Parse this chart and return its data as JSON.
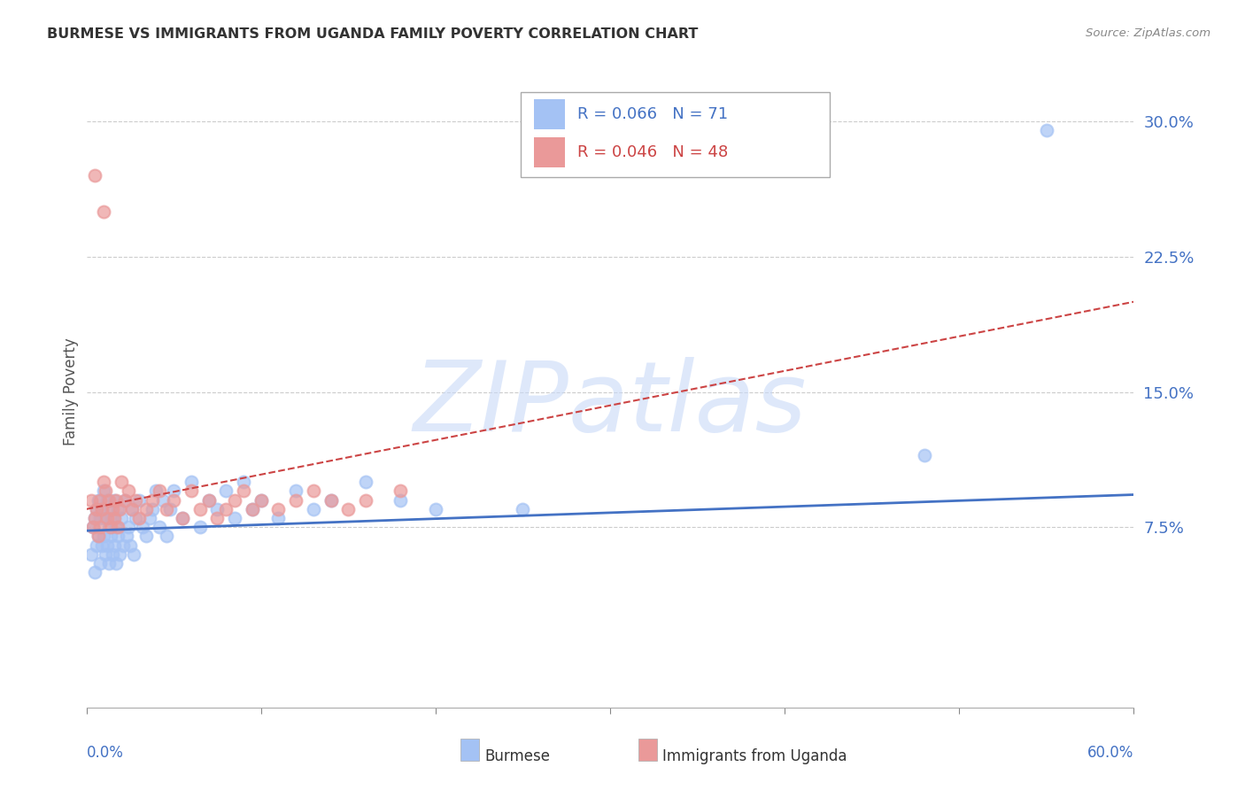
{
  "title": "BURMESE VS IMMIGRANTS FROM UGANDA FAMILY POVERTY CORRELATION CHART",
  "source": "Source: ZipAtlas.com",
  "ylabel": "Family Poverty",
  "ytick_labels": [
    "7.5%",
    "15.0%",
    "22.5%",
    "30.0%"
  ],
  "ytick_values": [
    0.075,
    0.15,
    0.225,
    0.3
  ],
  "xlim": [
    0.0,
    0.6
  ],
  "ylim": [
    -0.025,
    0.325
  ],
  "burmese_color": "#a4c2f4",
  "uganda_color": "#ea9999",
  "trendline_burmese_color": "#4472c4",
  "trendline_uganda_color": "#cc4444",
  "watermark": "ZIPatlas",
  "watermark_color": "#c9daf8",
  "burmese_R": 0.066,
  "burmese_N": 71,
  "uganda_R": 0.046,
  "uganda_N": 48,
  "burmese_trend_x0": 0.0,
  "burmese_trend_y0": 0.073,
  "burmese_trend_x1": 0.6,
  "burmese_trend_y1": 0.093,
  "uganda_trend_x0": 0.0,
  "uganda_trend_y0": 0.085,
  "uganda_trend_x1": 0.6,
  "uganda_trend_y1": 0.2,
  "burmese_scatter_x": [
    0.003,
    0.004,
    0.005,
    0.005,
    0.006,
    0.006,
    0.007,
    0.007,
    0.008,
    0.008,
    0.009,
    0.009,
    0.01,
    0.01,
    0.011,
    0.011,
    0.012,
    0.012,
    0.013,
    0.013,
    0.014,
    0.014,
    0.015,
    0.015,
    0.016,
    0.016,
    0.017,
    0.017,
    0.018,
    0.018,
    0.019,
    0.02,
    0.021,
    0.022,
    0.023,
    0.024,
    0.025,
    0.026,
    0.027,
    0.028,
    0.03,
    0.032,
    0.034,
    0.036,
    0.038,
    0.04,
    0.042,
    0.044,
    0.046,
    0.048,
    0.05,
    0.055,
    0.06,
    0.065,
    0.07,
    0.075,
    0.08,
    0.085,
    0.09,
    0.095,
    0.1,
    0.11,
    0.12,
    0.13,
    0.14,
    0.16,
    0.18,
    0.2,
    0.25,
    0.48,
    0.55
  ],
  "burmese_scatter_y": [
    0.06,
    0.075,
    0.05,
    0.08,
    0.065,
    0.085,
    0.07,
    0.09,
    0.055,
    0.08,
    0.065,
    0.085,
    0.07,
    0.095,
    0.06,
    0.08,
    0.065,
    0.09,
    0.055,
    0.075,
    0.07,
    0.085,
    0.06,
    0.08,
    0.065,
    0.09,
    0.055,
    0.075,
    0.07,
    0.085,
    0.06,
    0.08,
    0.065,
    0.09,
    0.07,
    0.075,
    0.065,
    0.085,
    0.06,
    0.08,
    0.09,
    0.075,
    0.07,
    0.08,
    0.085,
    0.095,
    0.075,
    0.09,
    0.07,
    0.085,
    0.095,
    0.08,
    0.1,
    0.075,
    0.09,
    0.085,
    0.095,
    0.08,
    0.1,
    0.085,
    0.09,
    0.08,
    0.095,
    0.085,
    0.09,
    0.1,
    0.09,
    0.085,
    0.085,
    0.115,
    0.295
  ],
  "uganda_scatter_x": [
    0.003,
    0.004,
    0.005,
    0.005,
    0.006,
    0.007,
    0.008,
    0.008,
    0.009,
    0.01,
    0.01,
    0.011,
    0.012,
    0.013,
    0.014,
    0.015,
    0.016,
    0.017,
    0.018,
    0.019,
    0.02,
    0.022,
    0.024,
    0.026,
    0.028,
    0.03,
    0.034,
    0.038,
    0.042,
    0.046,
    0.05,
    0.055,
    0.06,
    0.065,
    0.07,
    0.075,
    0.08,
    0.085,
    0.09,
    0.095,
    0.1,
    0.11,
    0.12,
    0.13,
    0.14,
    0.15,
    0.16,
    0.18
  ],
  "uganda_scatter_y": [
    0.09,
    0.075,
    0.27,
    0.08,
    0.085,
    0.07,
    0.09,
    0.075,
    0.085,
    0.1,
    0.25,
    0.095,
    0.08,
    0.09,
    0.075,
    0.085,
    0.08,
    0.09,
    0.075,
    0.085,
    0.1,
    0.09,
    0.095,
    0.085,
    0.09,
    0.08,
    0.085,
    0.09,
    0.095,
    0.085,
    0.09,
    0.08,
    0.095,
    0.085,
    0.09,
    0.08,
    0.085,
    0.09,
    0.095,
    0.085,
    0.09,
    0.085,
    0.09,
    0.095,
    0.09,
    0.085,
    0.09,
    0.095
  ]
}
